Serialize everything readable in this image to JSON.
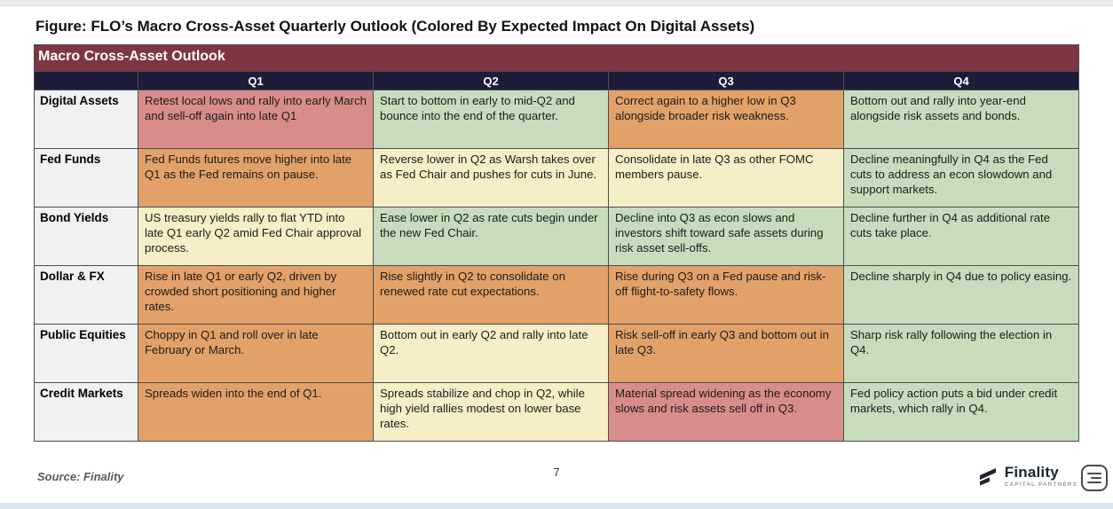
{
  "page": {
    "figure_title": "Figure: FLO’s Macro Cross-Asset Quarterly Outlook (Colored By Expected Impact On Digital Assets)",
    "footer": {
      "source": "Source: Finality",
      "page_number": "7"
    },
    "logo": {
      "name": "Finality",
      "subtitle": "CAPITAL PARTNERS"
    }
  },
  "table": {
    "title": "Macro Cross-Asset Outlook",
    "columns": [
      "",
      "Q1",
      "Q2",
      "Q3",
      "Q4"
    ],
    "colors": {
      "header_bg": "#7d3642",
      "subheader_bg": "#1d1d3a",
      "label_bg": "#f1f1f1",
      "red": "#d98c8c",
      "orange": "#e2a168",
      "cream": "#f5eec6",
      "green": "#c6dcbd"
    },
    "rows": [
      {
        "label": "Digital Assets",
        "cells": [
          {
            "text": "Retest local lows and rally into early March and sell-off again into late Q1",
            "tone": "red"
          },
          {
            "text": "Start to bottom in early to mid-Q2 and bounce into the end of the quarter.",
            "tone": "green"
          },
          {
            "text": "Correct again to a higher low in Q3 alongside broader risk weakness.",
            "tone": "orange"
          },
          {
            "text": "Bottom out and rally into year-end alongside risk assets and bonds.",
            "tone": "green"
          }
        ]
      },
      {
        "label": "Fed Funds",
        "cells": [
          {
            "text": "Fed Funds futures move higher into late Q1 as the Fed remains on pause.",
            "tone": "orange"
          },
          {
            "text": "Reverse lower in Q2 as Warsh takes over as Fed Chair and pushes for cuts in June.",
            "tone": "cream"
          },
          {
            "text": "Consolidate in late Q3 as other FOMC members pause.",
            "tone": "cream"
          },
          {
            "text": "Decline meaningfully in Q4 as the Fed cuts to address an econ slowdown and support markets.",
            "tone": "green"
          }
        ]
      },
      {
        "label": "Bond Yields",
        "cells": [
          {
            "text": "US treasury yields rally to flat YTD into late Q1 early Q2 amid Fed Chair approval process.",
            "tone": "cream"
          },
          {
            "text": "Ease lower in Q2 as rate cuts begin under the new Fed Chair.",
            "tone": "green"
          },
          {
            "text": "Decline into Q3 as econ slows and investors shift toward safe assets during risk asset sell-offs.",
            "tone": "green"
          },
          {
            "text": "Decline further in Q4 as additional rate cuts take place.",
            "tone": "green"
          }
        ]
      },
      {
        "label": "Dollar & FX",
        "cells": [
          {
            "text": "Rise in late Q1 or early Q2, driven by crowded short positioning and higher rates.",
            "tone": "orange"
          },
          {
            "text": "Rise slightly in Q2 to consolidate on renewed rate cut expectations.",
            "tone": "orange"
          },
          {
            "text": "Rise during Q3 on a Fed pause and risk-off flight-to-safety flows.",
            "tone": "orange"
          },
          {
            "text": "Decline sharply in Q4 due to policy easing.",
            "tone": "green"
          }
        ]
      },
      {
        "label": "Public Equities",
        "cells": [
          {
            "text": "Choppy in Q1 and roll over in late February or March.",
            "tone": "orange"
          },
          {
            "text": "Bottom out in early Q2 and rally into late Q2.",
            "tone": "cream"
          },
          {
            "text": "Risk sell-off in early Q3 and bottom out in late Q3.",
            "tone": "orange"
          },
          {
            "text": "Sharp risk rally following the election in Q4.",
            "tone": "green"
          }
        ]
      },
      {
        "label": "Credit Markets",
        "cells": [
          {
            "text": "Spreads widen into the end of Q1.",
            "tone": "orange"
          },
          {
            "text": "Spreads stabilize and chop in Q2, while high yield rallies modest on lower base rates.",
            "tone": "cream"
          },
          {
            "text": "Material spread widening as the economy slows and risk assets sell off in Q3.",
            "tone": "red"
          },
          {
            "text": "Fed policy action puts a bid under credit markets, which rally in Q4.",
            "tone": "green"
          }
        ]
      }
    ]
  }
}
